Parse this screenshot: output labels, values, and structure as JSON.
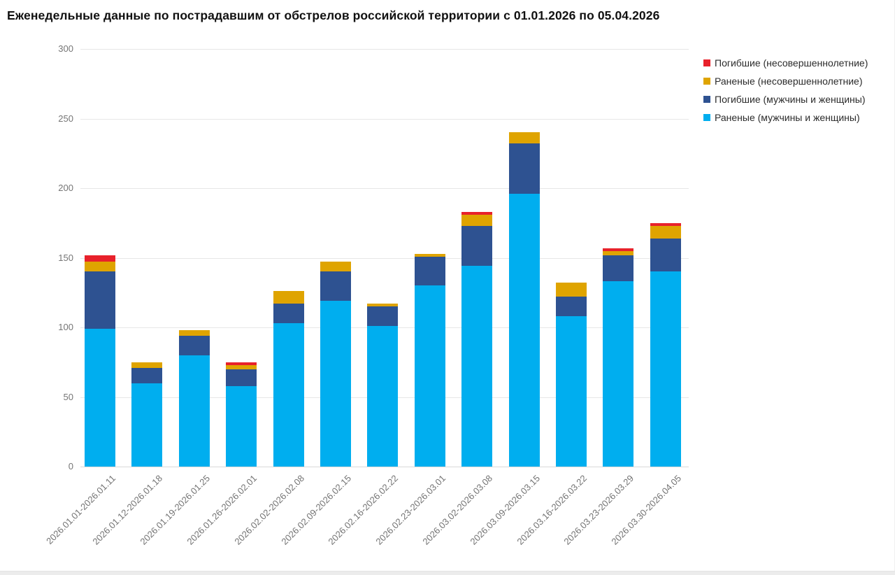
{
  "chart_data": {
    "type": "bar",
    "stacked": true,
    "title": "Еженедельные данные по пострадавшим от обстрелов российской территории с 01.01.2026 по 05.04.2026",
    "categories": [
      "2026.01.01-2026.01.11",
      "2026.01.12-2026.01.18",
      "2026.01.19-2026.01.25",
      "2026.01.26-2026.02.01",
      "2026.02.02-2026.02.08",
      "2026.02.09-2026.02.15",
      "2026.02.16-2026.02.22",
      "2026.02.23-2026.03.01",
      "2026.03.02-2026.03.08",
      "2026.03.09-2026.03.15",
      "2026.03.16-2026.03.22",
      "2026.03.23-2026.03.29",
      "2026.03.30-2026.04.05"
    ],
    "series": [
      {
        "name": "Раненые (мужчины и женщины)",
        "color": "#00aeef",
        "values": [
          99,
          60,
          80,
          58,
          103,
          119,
          101,
          130,
          144,
          196,
          108,
          133,
          140
        ]
      },
      {
        "name": "Погибшие (мужчины и женщины)",
        "color": "#2e5291",
        "values": [
          41,
          11,
          14,
          12,
          14,
          21,
          14,
          21,
          29,
          36,
          14,
          19,
          24
        ]
      },
      {
        "name": "Раненые (несовершеннолетние)",
        "color": "#dfa400",
        "values": [
          7,
          4,
          4,
          3,
          9,
          7,
          2,
          2,
          8,
          8,
          10,
          3,
          9
        ]
      },
      {
        "name": "Погибшие (несовершеннолетние)",
        "color": "#e8212b",
        "values": [
          5,
          0,
          0,
          2,
          0,
          0,
          0,
          0,
          2,
          0,
          0,
          2,
          2
        ]
      }
    ],
    "totals": [
      152,
      75,
      98,
      75,
      126,
      147,
      117,
      153,
      183,
      240,
      132,
      157,
      175
    ],
    "legend": {
      "position": "top-right",
      "entries": [
        {
          "label": "Погибшие (несовершеннолетние)",
          "color": "#e8212b"
        },
        {
          "label": "Раненые (несовершеннолетние)",
          "color": "#dfa400"
        },
        {
          "label": "Погибшие (мужчины и женщины)",
          "color": "#2e5291"
        },
        {
          "label": "Раненые (мужчины и женщины)",
          "color": "#00aeef"
        }
      ]
    },
    "yticks": [
      0,
      50,
      100,
      150,
      200,
      250,
      300
    ],
    "ylim": [
      0,
      300
    ],
    "grid": "horizontal",
    "axis_text_color": "#757575",
    "grid_color": "#e7e7e7",
    "title_color": "#111111"
  }
}
